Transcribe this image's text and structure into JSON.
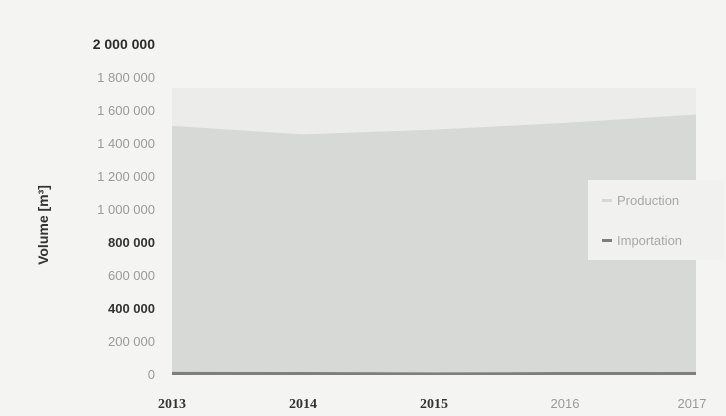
{
  "chart_data": {
    "type": "area",
    "title": "",
    "xlabel": "",
    "ylabel": "Volume [m³]",
    "x": [
      "2013",
      "2014",
      "2015",
      "2016",
      "2017"
    ],
    "ylim": [
      0,
      2000000
    ],
    "yticks": [
      {
        "value": 0,
        "label": "0"
      },
      {
        "value": 200000,
        "label": "200 000"
      },
      {
        "value": 400000,
        "label": "400 000"
      },
      {
        "value": 600000,
        "label": "600 000"
      },
      {
        "value": 800000,
        "label": "800 000"
      },
      {
        "value": 1000000,
        "label": "1 000 000"
      },
      {
        "value": 1200000,
        "label": "1 200 000"
      },
      {
        "value": 1400000,
        "label": "1 400 000"
      },
      {
        "value": 1600000,
        "label": "1 600 000"
      },
      {
        "value": 1800000,
        "label": "1 800 000"
      },
      {
        "value": 2000000,
        "label": "2 000 000"
      }
    ],
    "stacked": true,
    "series": [
      {
        "name": "Importation",
        "values": [
          20000,
          18000,
          17000,
          18000,
          19000
        ],
        "color": "#7e7e7e"
      },
      {
        "name": "Production",
        "values": [
          1490000,
          1440000,
          1470000,
          1510000,
          1560000
        ],
        "color": "#d7d9d6"
      }
    ],
    "legend": "right",
    "grid": false,
    "plot_background": "#ececea"
  }
}
